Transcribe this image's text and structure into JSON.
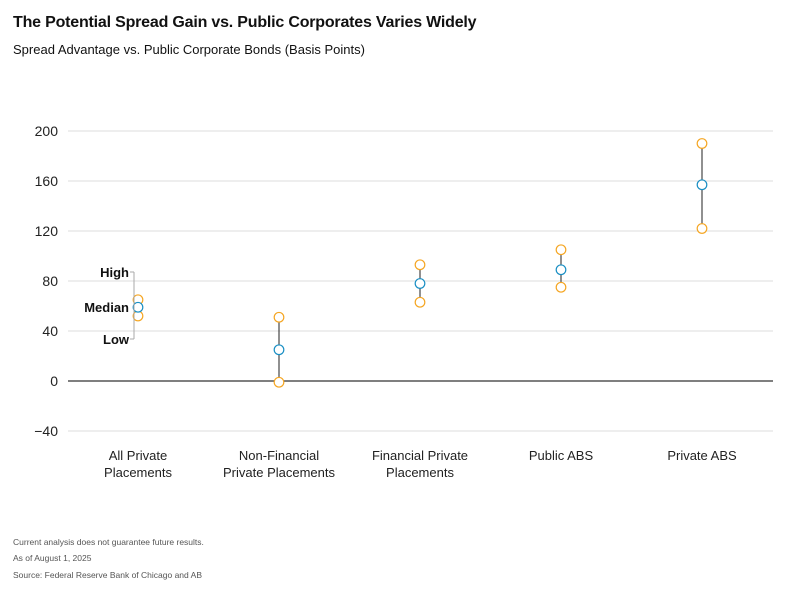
{
  "header": {
    "title": "The Potential Spread Gain vs. Public Corporates Varies Widely",
    "subtitle": "Spread Advantage vs. Public Corporate Bonds (Basis Points)"
  },
  "footer": {
    "note1": "Current analysis does not guarantee future results.",
    "note2": "As of August 1, 2025",
    "source": "Source: Federal Reserve Bank of Chicago and AB"
  },
  "chart_data": {
    "type": "scatter",
    "title": "The Potential Spread Gain vs. Public Corporates Varies Widely",
    "subtitle": "Spread Advantage vs. Public Corporate Bonds (Basis Points)",
    "xlabel": "",
    "ylabel": "",
    "ylim": [
      -40,
      200
    ],
    "yticks": [
      200,
      160,
      120,
      80,
      40,
      0,
      -40
    ],
    "ytick_labels": [
      "200",
      "160",
      "120",
      "80",
      "40",
      "0",
      "−40"
    ],
    "grid": true,
    "categories": [
      [
        "All Private",
        "Placements"
      ],
      [
        "Non-Financial",
        "Private Placements"
      ],
      [
        "Financial Private",
        "Placements"
      ],
      [
        "Public ABS"
      ],
      [
        "Private ABS"
      ]
    ],
    "series": [
      {
        "name": "High",
        "values": [
          65,
          51,
          93,
          105,
          190
        ]
      },
      {
        "name": "Median",
        "values": [
          59,
          25,
          78,
          89,
          157
        ]
      },
      {
        "name": "Low",
        "values": [
          52,
          -1,
          63,
          75,
          122
        ]
      }
    ],
    "legend_labels": {
      "high": "High",
      "median": "Median",
      "low": "Low"
    },
    "colors": {
      "high_low": "#f5a623",
      "median": "#1a8fc4",
      "grid": "#dddddd",
      "axis": "#333333",
      "range_line": "#222222"
    }
  }
}
